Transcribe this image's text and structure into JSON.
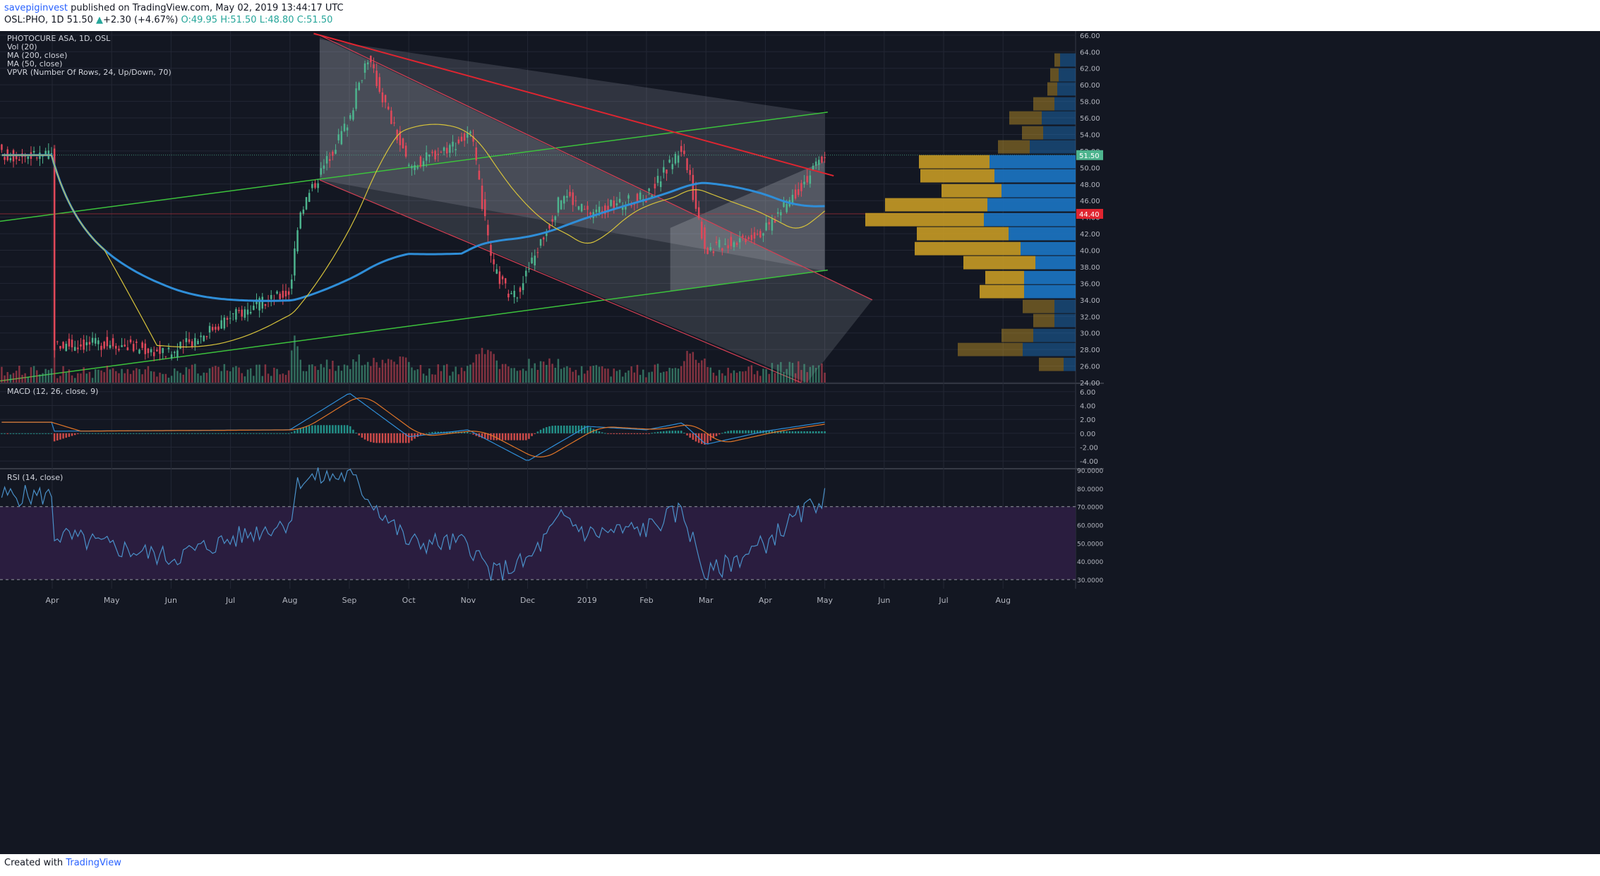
{
  "header": {
    "user": "savepiginvest",
    "published_text": "published on TradingView.com, May 02, 2019 13:44:17 UTC",
    "symbol_line_prefix": "OSL:PHO, 1D",
    "last_price": "51.50",
    "change": "+2.30 (+4.67%)",
    "open": "O:49.95",
    "high": "H:51.50",
    "low": "L:48.80",
    "close": "C:51.50"
  },
  "footer": {
    "created_with": "Created with",
    "brand": "TradingView"
  },
  "colors": {
    "background": "#131722",
    "up": "#4db48e",
    "down": "#e0485a",
    "ma200": "#2f8ed8",
    "ma50": "#d6c23b",
    "trend_red": "#e02530",
    "trend_green": "#3cc23c",
    "vpvr_up": "#c79a25",
    "vpvr_down": "#1c76c4",
    "rsi_band": "#2a1d3f",
    "macd_line": "#2f8ed8",
    "signal_line": "#e07528"
  },
  "chart_data": [
    {
      "type": "candlestick",
      "title": "PHOTOCURE ASA, 1D, OSL",
      "indicators": [
        "Vol (20)",
        "MA (200, close)",
        "MA (50, close)",
        "VPVR (Number Of Rows, 24, Up/Down, 70)"
      ],
      "x_tick_labels": [
        "Apr",
        "May",
        "Jun",
        "Jul",
        "Aug",
        "Sep",
        "Oct",
        "Nov",
        "Dec",
        "2019",
        "Feb",
        "Mar",
        "Apr",
        "May",
        "Jun",
        "Jul",
        "Aug"
      ],
      "y_tick_labels": [
        "24.00",
        "26.00",
        "28.00",
        "30.00",
        "32.00",
        "34.00",
        "36.00",
        "38.00",
        "40.00",
        "42.00",
        "44.00",
        "46.00",
        "48.00",
        "50.00",
        "52.00",
        "54.00",
        "56.00",
        "58.00",
        "60.00",
        "62.00",
        "64.00",
        "66.00"
      ],
      "ylim": [
        24,
        66.5
      ],
      "last_price_label": "51.50",
      "marked_level_label": "44.40",
      "price_anchors": [
        [
          "Apr 2018",
          28.5
        ],
        [
          "May 2018",
          28.8
        ],
        [
          "Jun 2018",
          27.5
        ],
        [
          "Jul 2018",
          32.0
        ],
        [
          "Aug 2018",
          35.0
        ],
        [
          "early Aug 2018",
          44.5
        ],
        [
          "Sep 2018",
          56.0
        ],
        [
          "mid Sep 2018",
          63.5
        ],
        [
          "Oct 2018",
          50.0
        ],
        [
          "early Nov 2018",
          54.0
        ],
        [
          "mid Nov 2018",
          38.0
        ],
        [
          "late Nov 2018",
          34.0
        ],
        [
          "Dec 2018",
          37.5
        ],
        [
          "late Dec 2018",
          47.0
        ],
        [
          "Jan 2019",
          44.5
        ],
        [
          "Feb 2019",
          46.5
        ],
        [
          "mid Feb 2019",
          52.5
        ],
        [
          "Mar 2019",
          40.0
        ],
        [
          "Apr 2019",
          42.5
        ],
        [
          "mid Apr 2019",
          46.5
        ],
        [
          "May 2019",
          51.5
        ]
      ],
      "vpvr_rows": [
        {
          "price": 63.0,
          "up": 8,
          "down": 22
        },
        {
          "price": 61.2,
          "up": 12,
          "down": 24
        },
        {
          "price": 59.5,
          "up": 14,
          "down": 26
        },
        {
          "price": 57.7,
          "up": 30,
          "down": 30
        },
        {
          "price": 56.0,
          "up": 46,
          "down": 48
        },
        {
          "price": 54.2,
          "up": 30,
          "down": 46
        },
        {
          "price": 52.5,
          "up": 45,
          "down": 65
        },
        {
          "price": 50.7,
          "up": 100,
          "down": 122
        },
        {
          "price": 49.0,
          "up": 105,
          "down": 115
        },
        {
          "price": 47.2,
          "up": 85,
          "down": 105
        },
        {
          "price": 45.5,
          "up": 145,
          "down": 125
        },
        {
          "price": 43.7,
          "up": 168,
          "down": 130
        },
        {
          "price": 42.0,
          "up": 130,
          "down": 95
        },
        {
          "price": 40.2,
          "up": 150,
          "down": 78
        },
        {
          "price": 38.5,
          "up": 102,
          "down": 57
        },
        {
          "price": 36.7,
          "up": 55,
          "down": 73
        },
        {
          "price": 35.0,
          "up": 63,
          "down": 73
        },
        {
          "price": 33.2,
          "up": 45,
          "down": 30
        },
        {
          "price": 31.5,
          "up": 30,
          "down": 30
        },
        {
          "price": 29.7,
          "up": 45,
          "down": 60
        },
        {
          "price": 28.0,
          "up": 92,
          "down": 75
        },
        {
          "price": 26.2,
          "up": 35,
          "down": 17
        }
      ]
    },
    {
      "type": "line",
      "title": "MACD (12, 26, close, 9)",
      "y_tick_labels": [
        "6.00",
        "4.00",
        "2.00",
        "0.00",
        "-2.00",
        "-4.00"
      ],
      "ylim": [
        -4.5,
        6.5
      ],
      "anchors": [
        [
          "Apr 2018",
          0.3
        ],
        [
          "Aug 2018",
          0.5
        ],
        [
          "Sep 2018",
          5.8
        ],
        [
          "Oct 2018",
          -0.5
        ],
        [
          "Nov 2018",
          0.5
        ],
        [
          "Dec 2018",
          -4.0
        ],
        [
          "Jan 2019",
          1.0
        ],
        [
          "Feb 2019",
          0.5
        ],
        [
          "mid Feb 2019",
          1.5
        ],
        [
          "Mar 2019",
          -1.6
        ],
        [
          "Apr 2019",
          0.3
        ],
        [
          "May 2019",
          1.6
        ]
      ]
    },
    {
      "type": "line",
      "title": "RSI (14, close)",
      "y_tick_labels": [
        "90.0000",
        "80.0000",
        "70.0000",
        "60.0000",
        "50.0000",
        "40.0000",
        "30.0000"
      ],
      "ylim": [
        25,
        90
      ],
      "band": [
        30,
        70
      ],
      "anchors": [
        [
          "Apr 2018",
          55
        ],
        [
          "May 2018",
          48
        ],
        [
          "Jun 2018",
          42
        ],
        [
          "Jul 2018",
          52
        ],
        [
          "Aug 2018",
          62
        ],
        [
          "early Aug 2018",
          85
        ],
        [
          "Sep 2018",
          87
        ],
        [
          "Oct 2018",
          50
        ],
        [
          "Nov 2018",
          50
        ],
        [
          "mid Nov 2018",
          33
        ],
        [
          "Dec 2018",
          40
        ],
        [
          "late Dec 2018",
          65
        ],
        [
          "Jan 2019",
          55
        ],
        [
          "Feb 2019",
          58
        ],
        [
          "mid Feb 2019",
          68
        ],
        [
          "Mar 2019",
          32
        ],
        [
          "Apr 2019",
          50
        ],
        [
          "mid Apr 2019",
          62
        ],
        [
          "May 2019",
          76
        ]
      ]
    }
  ]
}
